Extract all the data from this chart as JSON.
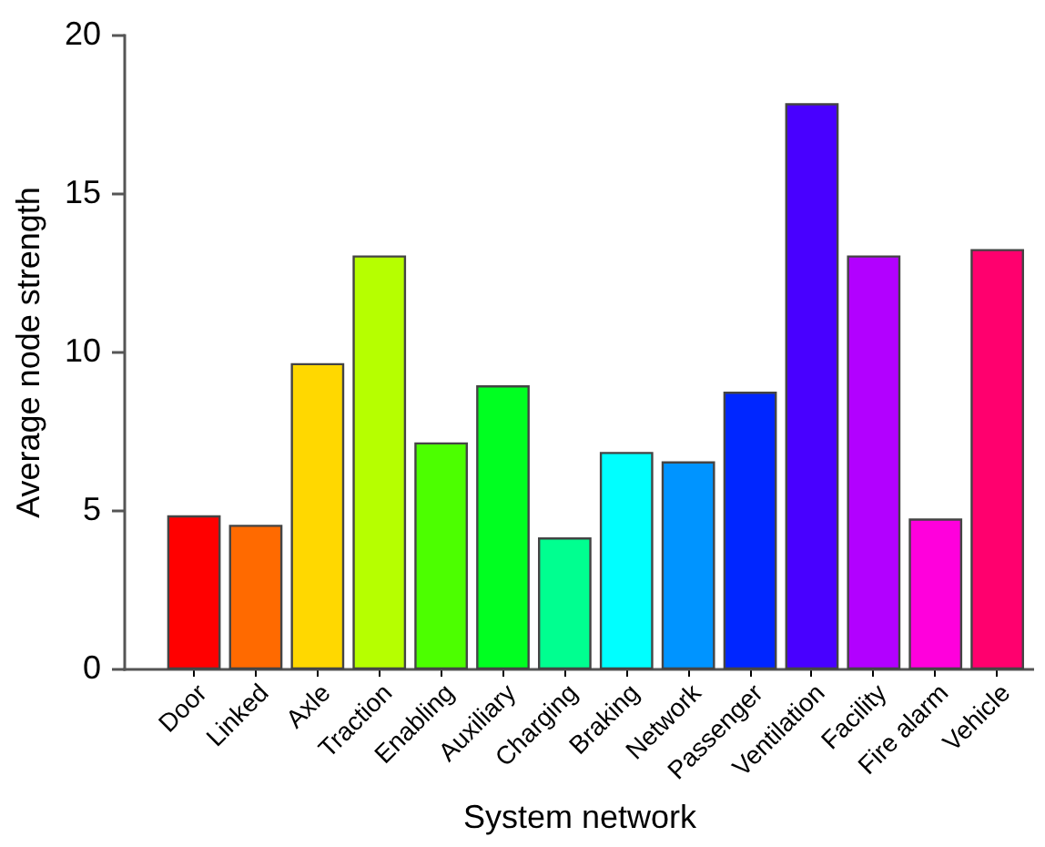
{
  "chart_data": {
    "type": "bar",
    "xlabel": "System network",
    "ylabel": "Average node strength",
    "categories": [
      "Door",
      "Linked",
      "Axle",
      "Traction",
      "Enabling",
      "Auxiliary",
      "Charging",
      "Braking",
      "Network",
      "Passenger",
      "Ventilation",
      "Facility",
      "Fire alarm",
      "Vehicle"
    ],
    "values": [
      4.8,
      4.5,
      9.6,
      13.0,
      7.1,
      8.9,
      4.1,
      6.8,
      6.5,
      8.7,
      17.8,
      13.0,
      4.7,
      13.2
    ],
    "colors": [
      "#ff0000",
      "#ff6a00",
      "#ffd800",
      "#b6ff00",
      "#4cff00",
      "#00ff21",
      "#00ff90",
      "#00ffff",
      "#0094ff",
      "#0026ff",
      "#4800ff",
      "#b200ff",
      "#ff00dc",
      "#ff006e"
    ],
    "ylim": [
      0,
      20
    ],
    "yticks": [
      0,
      5,
      10,
      15,
      20
    ],
    "grid": false
  }
}
